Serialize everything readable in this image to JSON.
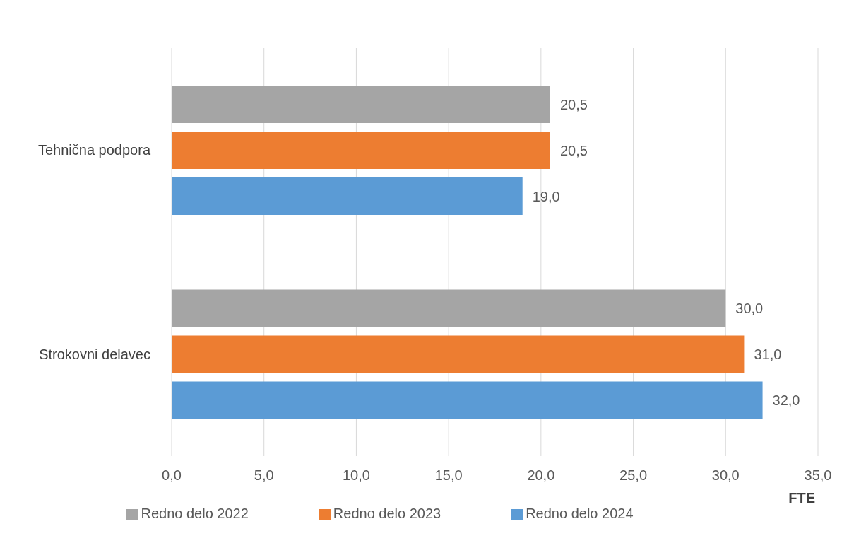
{
  "chart_data": {
    "type": "bar",
    "orientation": "horizontal",
    "categories": [
      "Tehnična podpora",
      "Strokovni delavec"
    ],
    "series": [
      {
        "name": "Redno delo 2022",
        "color": "#a5a5a5",
        "values": [
          20.5,
          30.0
        ],
        "value_labels": [
          "20,5",
          "30,0"
        ]
      },
      {
        "name": "Redno delo 2023",
        "color": "#ed7d31",
        "values": [
          20.5,
          31.0
        ],
        "value_labels": [
          "20,5",
          "31,0"
        ]
      },
      {
        "name": "Redno delo 2024",
        "color": "#5b9bd5",
        "values": [
          19.0,
          32.0
        ],
        "value_labels": [
          "19,0",
          "32,0"
        ]
      }
    ],
    "xlabel": "FTE",
    "xlim": [
      0,
      35
    ],
    "xticks": [
      {
        "value": 0,
        "label": "0,0"
      },
      {
        "value": 5,
        "label": "5,0"
      },
      {
        "value": 10,
        "label": "10,0"
      },
      {
        "value": 15,
        "label": "15,0"
      },
      {
        "value": 20,
        "label": "20,0"
      },
      {
        "value": 25,
        "label": "25,0"
      },
      {
        "value": 30,
        "label": "30,0"
      },
      {
        "value": 35,
        "label": "35,0"
      }
    ],
    "grid": "x",
    "legend": "bottom"
  }
}
